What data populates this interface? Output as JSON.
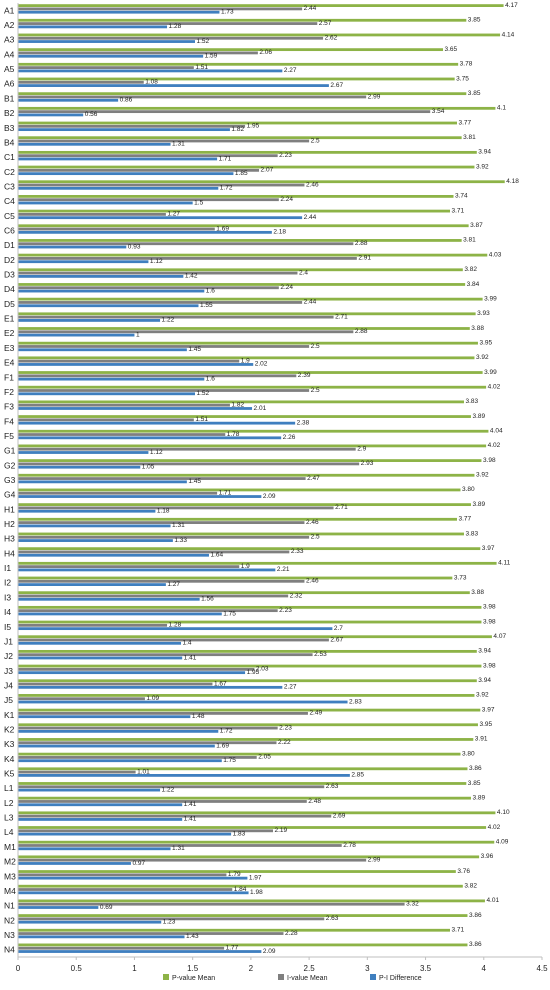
{
  "chart_data": {
    "type": "bar",
    "orientation": "horizontal",
    "title": "",
    "xlabel": "",
    "ylabel": "",
    "xlim": [
      0,
      4.5
    ],
    "xticks": [
      "0",
      "0.5",
      "1",
      "1.5",
      "2",
      "2.5",
      "3",
      "3.5",
      "4",
      "4.5"
    ],
    "grid": false,
    "legend_position": "bottom",
    "categories": [
      "A1",
      "A2",
      "A3",
      "A4",
      "A5",
      "A6",
      "B1",
      "B2",
      "B3",
      "B4",
      "C1",
      "C2",
      "C3",
      "C4",
      "C5",
      "C6",
      "D1",
      "D2",
      "D3",
      "D4",
      "D5",
      "E1",
      "E2",
      "E3",
      "E4",
      "F1",
      "F2",
      "F3",
      "F4",
      "F5",
      "G1",
      "G2",
      "G3",
      "G4",
      "H1",
      "H2",
      "H3",
      "H4",
      "I1",
      "I2",
      "I3",
      "I4",
      "I5",
      "J1",
      "J2",
      "J3",
      "J4",
      "J5",
      "K1",
      "K2",
      "K3",
      "K4",
      "K5",
      "L1",
      "L2",
      "L3",
      "L4",
      "M1",
      "M2",
      "M3",
      "M4",
      "N1",
      "N2",
      "N3",
      "N4"
    ],
    "series": [
      {
        "name": "P-value Mean",
        "color": "#8db347",
        "values": [
          4.17,
          3.85,
          4.14,
          3.65,
          3.78,
          3.75,
          3.85,
          4.1,
          3.77,
          3.81,
          3.94,
          3.92,
          4.18,
          3.74,
          3.71,
          3.87,
          3.81,
          4.03,
          3.82,
          3.84,
          3.99,
          3.93,
          3.88,
          3.95,
          3.92,
          3.99,
          4.02,
          3.83,
          3.89,
          4.04,
          4.02,
          3.98,
          3.92,
          3.8,
          3.89,
          3.77,
          3.83,
          3.97,
          4.11,
          3.73,
          3.88,
          3.98,
          3.98,
          4.07,
          3.94,
          3.98,
          3.94,
          3.92,
          3.97,
          3.95,
          3.91,
          3.8,
          3.86,
          3.85,
          3.89,
          4.1,
          4.02,
          4.09,
          3.96,
          3.76,
          3.82,
          4.01,
          3.86,
          3.71,
          3.86
        ],
        "labels": [
          "4.17",
          "3.85",
          "4.14",
          "3.65",
          "3.78",
          "3.75",
          "3.85",
          "4.1",
          "3.77",
          "3.81",
          "3.94",
          "3.92",
          "4.18",
          "3.74",
          "3.71",
          "3.87",
          "3.81",
          "4.03",
          "3.82",
          "3.84",
          "3.99",
          "3.93",
          "3.88",
          "3.95",
          "3.92",
          "3.99",
          "4.02",
          "3.83",
          "3.89",
          "4.04",
          "4.02",
          "3.98",
          "3.92",
          "3.80",
          "3.89",
          "3.77",
          "3.83",
          "3.97",
          "4.11",
          "3.73",
          "3.88",
          "3.98",
          "3.98",
          "4.07",
          "3.94",
          "3.98",
          "3.94",
          "3.92",
          "3.97",
          "3.95",
          "3.91",
          "3.80",
          "3.86",
          "3.85",
          "3.89",
          "4.10",
          "4.02",
          "4.09",
          "3.96",
          "3.76",
          "3.82",
          "4.01",
          "3.86",
          "3.71",
          "3.86"
        ]
      },
      {
        "name": "I-value Mean",
        "color": "#7f7f7f",
        "values": [
          2.44,
          2.57,
          2.62,
          2.06,
          1.51,
          1.08,
          2.99,
          3.54,
          1.95,
          2.5,
          2.23,
          2.07,
          2.46,
          2.24,
          1.27,
          1.69,
          2.88,
          2.91,
          2.4,
          2.24,
          2.44,
          2.71,
          2.88,
          2.5,
          1.9,
          2.39,
          2.5,
          1.82,
          1.51,
          1.78,
          2.9,
          2.93,
          2.47,
          1.71,
          2.71,
          2.46,
          2.5,
          2.33,
          1.9,
          2.46,
          2.32,
          2.23,
          1.28,
          2.67,
          2.53,
          2.03,
          1.67,
          1.09,
          2.49,
          2.23,
          2.22,
          2.05,
          1.01,
          2.63,
          2.48,
          2.69,
          2.19,
          2.78,
          2.99,
          1.79,
          1.84,
          3.32,
          2.63,
          2.28,
          1.77
        ],
        "labels": [
          "2.44",
          "2.57",
          "2.62",
          "2.06",
          "1.51",
          "1.08",
          "2.99",
          "3.54",
          "1.95",
          "2.5",
          "2.23",
          "2.07",
          "2.46",
          "2.24",
          "1.27",
          "1.69",
          "2.88",
          "2.91",
          "2.4",
          "2.24",
          "2.44",
          "2.71",
          "2.88",
          "2.5",
          "1.9",
          "2.39",
          "2.5",
          "1.82",
          "1.51",
          "1.78",
          "2.9",
          "2.93",
          "2.47",
          "1.71",
          "2.71",
          "2.46",
          "2.5",
          "2.33",
          "1.9",
          "2.46",
          "2.32",
          "2.23",
          "1.28",
          "2.67",
          "2.53",
          "2.03",
          "1.67",
          "1.09",
          "2.49",
          "2.23",
          "2.22",
          "2.05",
          "1.01",
          "2.63",
          "2.48",
          "2.69",
          "2.19",
          "2.78",
          "2.99",
          "1.79",
          "1.84",
          "3.32",
          "2.63",
          "2.28",
          "1.77"
        ]
      },
      {
        "name": "P-I Difference",
        "color": "#3f7fbf",
        "values": [
          1.73,
          1.28,
          1.52,
          1.59,
          2.27,
          2.67,
          0.86,
          0.56,
          1.82,
          1.31,
          1.71,
          1.85,
          1.72,
          1.5,
          2.44,
          2.18,
          0.93,
          1.12,
          1.42,
          1.6,
          1.55,
          1.22,
          1,
          1.45,
          2.02,
          1.6,
          1.52,
          2.01,
          2.38,
          2.26,
          1.12,
          1.05,
          1.45,
          2.09,
          1.18,
          1.31,
          1.33,
          1.64,
          2.21,
          1.27,
          1.56,
          1.75,
          2.7,
          1.4,
          1.41,
          1.95,
          2.27,
          2.83,
          1.48,
          1.72,
          1.69,
          1.75,
          2.85,
          1.22,
          1.41,
          1.41,
          1.83,
          1.31,
          0.97,
          1.97,
          1.98,
          0.69,
          1.23,
          1.43,
          2.09
        ],
        "labels": [
          "1.73",
          "1.28",
          "1.52",
          "1.59",
          "2.27",
          "2.67",
          "0.86",
          "0.56",
          "1.82",
          "1.31",
          "1.71",
          "1.85",
          "1.72",
          "1.5",
          "2.44",
          "2.18",
          "0.93",
          "1.12",
          "1.42",
          "1.6",
          "1.55",
          "1.22",
          "1",
          "1.45",
          "2.02",
          "1.6",
          "1.52",
          "2.01",
          "2.38",
          "2.26",
          "1.12",
          "1.05",
          "1.45",
          "2.09",
          "1.18",
          "1.31",
          "1.33",
          "1.64",
          "2.21",
          "1.27",
          "1.56",
          "1.75",
          "2.7",
          "1.4",
          "1.41",
          "1.95",
          "2.27",
          "2.83",
          "1.48",
          "1.72",
          "1.69",
          "1.75",
          "2.85",
          "1.22",
          "1.41",
          "1.41",
          "1.83",
          "1.31",
          "0.97",
          "1.97",
          "1.98",
          "0.69",
          "1.23",
          "1.43",
          "2.09"
        ]
      }
    ]
  }
}
